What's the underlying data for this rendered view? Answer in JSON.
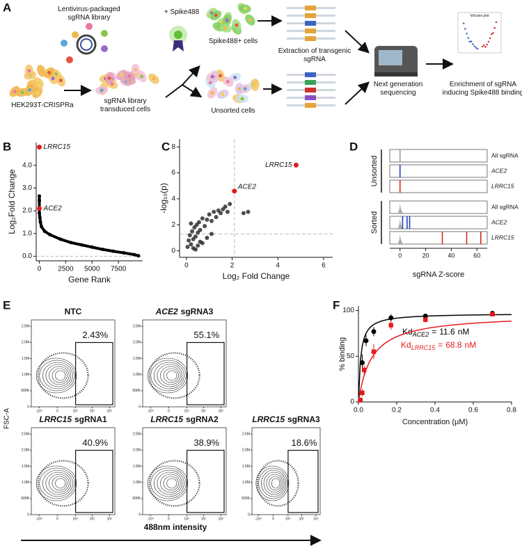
{
  "panel_labels": [
    "A",
    "B",
    "C",
    "D",
    "E",
    "F"
  ],
  "schematic": {
    "library": "Lentivirus-packaged sgRNA library",
    "spike": "+ Spike488",
    "cells": "HEK293T-CRISPRa",
    "transduced": "sgRNA library transduced cells",
    "sorted": "Spike488+ cells",
    "unsorted": "Unsorted cells",
    "extraction": "Extraction of transgenic sgRNA",
    "ngs": "Next generation sequencing",
    "enrichment": "Enrichment of sgRNA inducing Spike488 binding",
    "volcano": "Volcano plot"
  },
  "chart_data": [
    {
      "type": "rank",
      "xlabel": "Gene Rank",
      "ylabel": "Log₂Fold Change",
      "xlim": [
        -300,
        9800
      ],
      "ylim": [
        -0.2,
        5.0
      ],
      "xticks": [
        0,
        2500,
        5000,
        7500
      ],
      "yticks": [
        {
          "value": 0,
          "label": "0.0"
        },
        {
          "value": 1,
          "label": "1.0"
        },
        {
          "value": 2,
          "label": "2.0"
        },
        {
          "value": 3,
          "label": "3.0"
        },
        {
          "value": 4,
          "label": "4.0"
        }
      ],
      "reference_y": 0,
      "points": {
        "color": "#000000",
        "x": [
          0,
          0,
          0,
          50,
          100,
          200,
          500,
          1000,
          2000,
          3000,
          4000,
          5000,
          6000,
          7000,
          8000,
          9000,
          9400
        ],
        "values": [
          2.65,
          2.45,
          1.9,
          1.7,
          1.5,
          1.3,
          1.1,
          0.95,
          0.75,
          0.6,
          0.5,
          0.4,
          0.3,
          0.22,
          0.15,
          0.07,
          0.02
        ]
      },
      "highlights": {
        "color": "#e41a1c",
        "x": [
          0,
          0
        ],
        "values": [
          4.8,
          2.1
        ],
        "labels": [
          "LRRC15",
          "ACE2"
        ]
      }
    },
    {
      "type": "volcano",
      "xlabel": "Log₂ Fold Change",
      "ylabel": "-log₁₀(p)",
      "xlim": [
        -0.3,
        6.4
      ],
      "ylim": [
        -0.5,
        8.6
      ],
      "xticks": [
        0,
        2,
        4,
        6
      ],
      "yticks": [
        0,
        2,
        4,
        6,
        8
      ],
      "threshold_x": 2.1,
      "threshold_y": 1.3,
      "points": {
        "color": "#222222",
        "x": [
          0.05,
          0.1,
          0.15,
          0.2,
          0.25,
          0.3,
          0.35,
          0.4,
          0.45,
          0.5,
          0.55,
          0.6,
          0.7,
          0.8,
          0.9,
          1.0,
          1.1,
          1.2,
          1.3,
          1.4,
          1.5,
          1.6,
          1.7,
          1.8,
          1.9,
          2.5,
          2.7,
          0.3,
          0.5,
          0.7,
          0.9,
          1.1,
          0.2,
          0.4,
          0.6
        ],
        "values": [
          0.3,
          0.8,
          1.2,
          0.5,
          1.5,
          0.9,
          1.8,
          1.1,
          2.0,
          1.4,
          2.2,
          1.6,
          2.5,
          1.9,
          2.4,
          2.8,
          2.3,
          3.0,
          2.6,
          3.1,
          2.9,
          3.2,
          3.4,
          3.0,
          3.6,
          2.9,
          3.0,
          0.2,
          0.4,
          0.6,
          1.0,
          1.3,
          2.1,
          0.1,
          0.7
        ]
      },
      "highlights": {
        "color": "#e41a1c",
        "x": [
          4.8,
          2.1
        ],
        "values": [
          6.6,
          4.6
        ],
        "labels": [
          "LRRC15",
          "ACE2"
        ]
      }
    },
    {
      "type": "strip",
      "xlabel": "sgRNA Z-score",
      "xlim": [
        -8,
        68
      ],
      "xticks": [
        0,
        20,
        40,
        60
      ],
      "groups": [
        {
          "name": "Unsorted",
          "density": false,
          "rows": [
            {
              "label": "All sgRNA",
              "italic": false,
              "color": "#999999",
              "values": [
                0
              ]
            },
            {
              "label": "ACE2",
              "italic": true,
              "color": "#1f3fbf",
              "values": [
                0
              ]
            },
            {
              "label": "LRRC15",
              "italic": true,
              "color": "#d7261e",
              "values": [
                0
              ]
            }
          ]
        },
        {
          "name": "Sorted",
          "density": true,
          "rows": [
            {
              "label": "All sgRNA",
              "italic": false,
              "color": "#999999",
              "values": [
                0
              ]
            },
            {
              "label": "ACE2",
              "italic": true,
              "color": "#1f3fbf",
              "values": [
                2,
                5.5,
                7.5
              ]
            },
            {
              "label": "LRRC15",
              "italic": true,
              "color": "#d7261e",
              "values": [
                33,
                52,
                63
              ]
            }
          ]
        }
      ]
    },
    {
      "type": "flow",
      "ylabel": "FSC-A",
      "xlabel": "488nm intensity",
      "xscale": "symlog",
      "xlim": [
        -30000,
        2000000
      ],
      "ylim": [
        0,
        2700000
      ],
      "xticks": [
        {
          "value": -10000,
          "label": "-10⁴"
        },
        0,
        {
          "value": 10000,
          "label": "10⁴"
        },
        {
          "value": 100000,
          "label": "10⁵"
        },
        {
          "value": 1000000,
          "label": "10⁶"
        }
      ],
      "yticks": [
        0,
        {
          "value": 500000,
          "label": "500K"
        },
        {
          "value": 1000000,
          "label": "1.0M"
        },
        {
          "value": 1500000,
          "label": "1.5M"
        },
        {
          "value": 2000000,
          "label": "2.0M"
        },
        {
          "value": 2500000,
          "label": "2.5M"
        }
      ],
      "panels": [
        {
          "guide": "NTC",
          "value": 2.43,
          "value_label": "2.43%"
        },
        {
          "gene": "ACE2",
          "guide": "sgRNA3",
          "value": 55.1,
          "value_label": "55.1%"
        },
        {
          "gene": "LRRC15",
          "guide": "sgRNA1",
          "value": 40.9,
          "value_label": "40.9%"
        },
        {
          "gene": "LRRC15",
          "guide": "sgRNA2",
          "value": 38.9,
          "value_label": "38.9%"
        },
        {
          "gene": "LRRC15",
          "guide": "sgRNA3",
          "value": 18.6,
          "value_label": "18.6%"
        }
      ]
    },
    {
      "type": "binding",
      "xlabel": "Concentration (μM)",
      "ylabel": "% binding",
      "xlim": [
        0,
        0.8
      ],
      "ylim": [
        0,
        105
      ],
      "xticks": [
        {
          "value": 0,
          "label": "0.0"
        },
        {
          "value": 0.2,
          "label": "0.2"
        },
        {
          "value": 0.4,
          "label": "0.4"
        },
        {
          "value": 0.6,
          "label": "0.6"
        },
        {
          "value": 0.8,
          "label": "0.8"
        }
      ],
      "yticks": [
        0,
        50,
        100
      ],
      "kd_prefix": "Kd",
      "kd_equals": "=",
      "kd_unit": "nM",
      "series": [
        {
          "name": "ACE2",
          "color": "#000000",
          "marker": "circle",
          "kd": 11.6,
          "x": [
            0.01,
            0.02,
            0.04,
            0.08,
            0.17,
            0.35,
            0.7
          ],
          "values": [
            2,
            43,
            67,
            77,
            92,
            94,
            97
          ],
          "errors": [
            2,
            9,
            6,
            5,
            4,
            2,
            2
          ]
        },
        {
          "name": "LRRC15",
          "color": "#e41a1c",
          "marker": "square",
          "kd": 68.8,
          "x": [
            0.01,
            0.02,
            0.03,
            0.08,
            0.17,
            0.35,
            0.7
          ],
          "values": [
            2,
            10,
            35,
            55,
            84,
            90,
            96
          ],
          "errors": [
            2,
            4,
            5,
            8,
            5,
            3,
            2
          ]
        }
      ]
    }
  ]
}
